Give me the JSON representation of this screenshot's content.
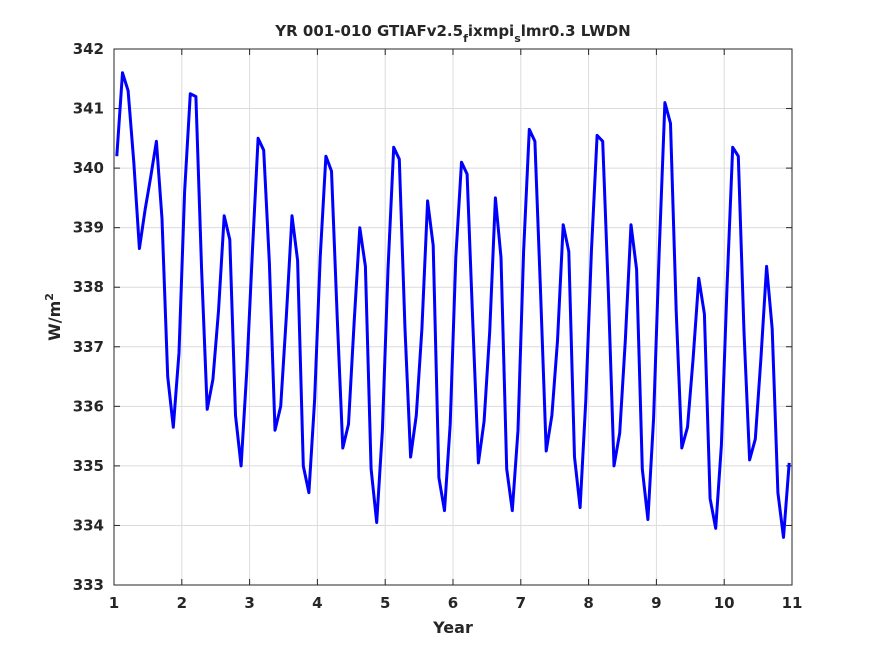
{
  "chart_data": {
    "type": "line",
    "title": {
      "main": "YR 001-010 GTIAFv2.5",
      "sub1": "f",
      "mid": "ixmpi",
      "sub2": "s",
      "tail": "lmr0.3 LWDN"
    },
    "xlabel": "Year",
    "ylabel": {
      "base": "W/m",
      "sup": "2"
    },
    "xlim": [
      1,
      11
    ],
    "ylim": [
      333,
      342
    ],
    "xticks": [
      "1",
      "2",
      "3",
      "4",
      "5",
      "6",
      "7",
      "8",
      "9",
      "10",
      "11"
    ],
    "yticks": [
      "333",
      "334",
      "335",
      "336",
      "337",
      "338",
      "339",
      "340",
      "341",
      "342"
    ],
    "grid": true,
    "line_color": "#0000ff",
    "series": [
      {
        "x": [
          1.042,
          1.125,
          1.208,
          1.292,
          1.375,
          1.458,
          1.542,
          1.625,
          1.708,
          1.792,
          1.875,
          1.958,
          2.042,
          2.125,
          2.208,
          2.292,
          2.375,
          2.458,
          2.542,
          2.625,
          2.708,
          2.792,
          2.875,
          2.958,
          3.042,
          3.125,
          3.208,
          3.292,
          3.375,
          3.458,
          3.542,
          3.625,
          3.708,
          3.792,
          3.875,
          3.958,
          4.042,
          4.125,
          4.208,
          4.292,
          4.375,
          4.458,
          4.542,
          4.625,
          4.708,
          4.792,
          4.875,
          4.958,
          5.042,
          5.125,
          5.208,
          5.292,
          5.375,
          5.458,
          5.542,
          5.625,
          5.708,
          5.792,
          5.875,
          5.958,
          6.042,
          6.125,
          6.208,
          6.292,
          6.375,
          6.458,
          6.542,
          6.625,
          6.708,
          6.792,
          6.875,
          6.958,
          7.042,
          7.125,
          7.208,
          7.292,
          7.375,
          7.458,
          7.542,
          7.625,
          7.708,
          7.792,
          7.875,
          7.958,
          8.042,
          8.125,
          8.208,
          8.292,
          8.375,
          8.458,
          8.542,
          8.625,
          8.708,
          8.792,
          8.875,
          8.958,
          9.042,
          9.125,
          9.208,
          9.292,
          9.375,
          9.458,
          9.542,
          9.625,
          9.708,
          9.792,
          9.875,
          9.958,
          10.042,
          10.125,
          10.208,
          10.292,
          10.375,
          10.458,
          10.542,
          10.625,
          10.708,
          10.792,
          10.875,
          10.958
        ],
        "values": [
          340.2,
          341.6,
          341.3,
          340.1,
          338.65,
          339.3,
          339.85,
          340.45,
          339.15,
          336.5,
          335.65,
          336.9,
          339.6,
          341.25,
          341.2,
          338.3,
          335.95,
          336.45,
          337.6,
          339.2,
          338.8,
          335.85,
          335.0,
          336.6,
          338.6,
          340.5,
          340.3,
          338.4,
          335.6,
          336.0,
          337.5,
          339.2,
          338.45,
          335.0,
          334.55,
          336.1,
          338.5,
          340.2,
          339.95,
          337.5,
          335.3,
          335.7,
          337.4,
          339.0,
          338.35,
          334.95,
          334.05,
          335.6,
          338.3,
          340.35,
          340.15,
          337.3,
          335.15,
          335.85,
          337.3,
          339.45,
          338.7,
          334.8,
          334.25,
          335.7,
          338.5,
          340.1,
          339.9,
          337.4,
          335.05,
          335.75,
          337.25,
          339.5,
          338.5,
          334.95,
          334.25,
          335.6,
          338.6,
          340.65,
          340.45,
          337.9,
          335.25,
          335.85,
          337.1,
          339.05,
          338.6,
          335.15,
          334.3,
          336.1,
          338.6,
          340.55,
          340.45,
          337.9,
          335.0,
          335.55,
          337.1,
          339.05,
          338.3,
          334.95,
          334.1,
          335.8,
          338.6,
          341.1,
          340.75,
          337.6,
          335.3,
          335.65,
          336.8,
          338.15,
          337.55,
          334.45,
          333.95,
          335.35,
          338.0,
          340.35,
          340.2,
          337.25,
          335.1,
          335.45,
          336.8,
          338.35,
          337.3,
          334.55,
          333.8,
          335.05
        ]
      }
    ]
  }
}
